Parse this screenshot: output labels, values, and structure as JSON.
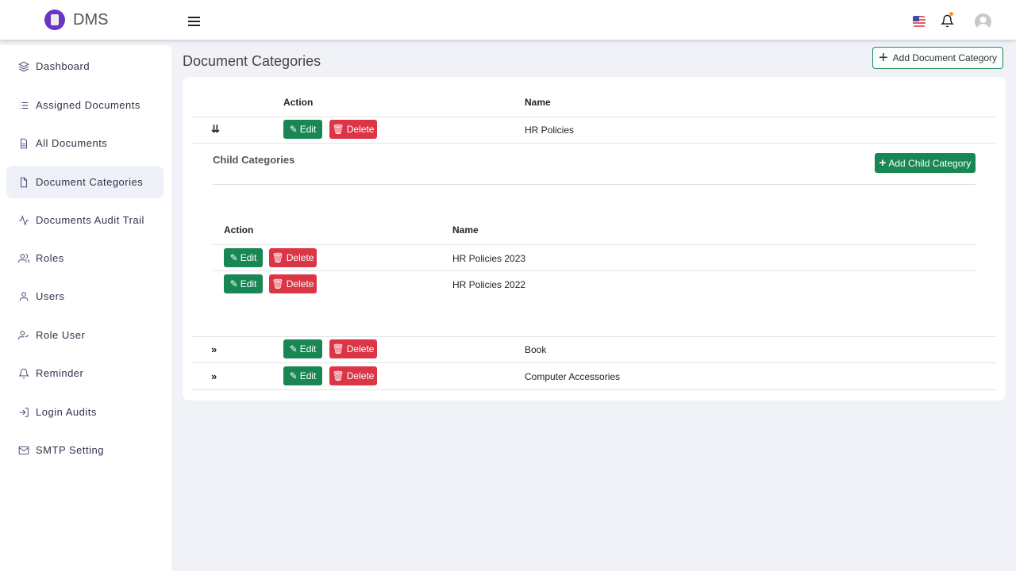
{
  "header": {
    "brand": "DMS"
  },
  "sidebar": {
    "items": [
      {
        "label": "Dashboard",
        "icon": "layers-icon"
      },
      {
        "label": "Assigned Documents",
        "icon": "list-icon"
      },
      {
        "label": "All Documents",
        "icon": "file-text-icon"
      },
      {
        "label": "Document Categories",
        "icon": "file-icon",
        "active": true
      },
      {
        "label": "Documents Audit Trail",
        "icon": "activity-icon"
      },
      {
        "label": "Roles",
        "icon": "users-icon"
      },
      {
        "label": "Users",
        "icon": "user-icon"
      },
      {
        "label": "Role User",
        "icon": "user-check-icon"
      },
      {
        "label": "Reminder",
        "icon": "bell-icon"
      },
      {
        "label": "Login Audits",
        "icon": "log-in-icon"
      },
      {
        "label": "SMTP Setting",
        "icon": "mail-icon"
      }
    ]
  },
  "page": {
    "title": "Document Categories",
    "add_label": "Add Document Category"
  },
  "table": {
    "col_action": "Action",
    "col_name": "Name",
    "edit": "Edit",
    "delete": "Delete",
    "rows": [
      {
        "name": "HR Policies",
        "expanded": true
      },
      {
        "name": "Book"
      },
      {
        "name": "Computer Accessories"
      }
    ]
  },
  "child": {
    "title": "Child Categories",
    "add_label": "Add Child Category",
    "col_action": "Action",
    "col_name": "Name",
    "rows": [
      {
        "name": "HR Policies 2023"
      },
      {
        "name": "HR Policies 2022"
      }
    ]
  },
  "colors": {
    "edit": "#198754",
    "delete": "#dc3545",
    "brand": "#6a35c4"
  }
}
